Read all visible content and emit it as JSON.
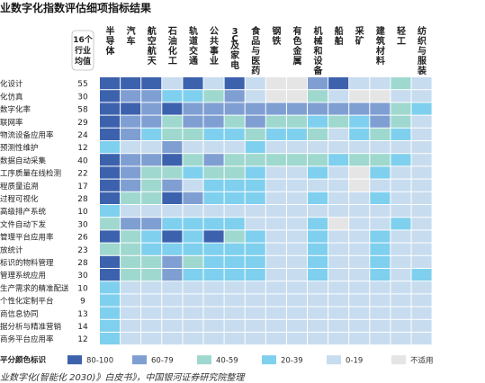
{
  "title": "业数字化指数评估细项指标结果",
  "source": "业数字化(智能化 2030)》白皮书》，中国银河证券研究院整理",
  "chart_data": {
    "type": "heatmap",
    "score_header": [
      "16个",
      "行业",
      "均值"
    ],
    "columns": [
      "半导体",
      "汽车",
      "航空航天",
      "石油化工",
      "轨道交通",
      "公共事业",
      "3C及家电",
      "食品与医药",
      "钢铁",
      "有色金属",
      "机械和设备",
      "船舶",
      "采矿",
      "建筑材料",
      "轻工",
      "纺织与服装"
    ],
    "rows": [
      {
        "label": "化设计",
        "mean": 55
      },
      {
        "label": "化仿真",
        "mean": 30
      },
      {
        "label": "数字化率",
        "mean": 58
      },
      {
        "label": "联网率",
        "mean": 29
      },
      {
        "label": "物流设备应用率",
        "mean": 24
      },
      {
        "label": "预测性维护",
        "mean": 12
      },
      {
        "label": "数据自动采集",
        "mean": 40
      },
      {
        "label": "工序质量在线检测",
        "mean": 22
      },
      {
        "label": "程质量追溯",
        "mean": 17
      },
      {
        "label": "过程可视化",
        "mean": 28
      },
      {
        "label": "高级排产系统",
        "mean": 10
      },
      {
        "label": "文件自动下发",
        "mean": 30
      },
      {
        "label": "管理平台应用率",
        "mean": 26
      },
      {
        "label": "放统计",
        "mean": 23
      },
      {
        "label": "标识的物料管理",
        "mean": 28
      },
      {
        "label": "管理系统应用",
        "mean": 30
      },
      {
        "label": "生产需求的精准配送",
        "mean": 10
      },
      {
        "label": "个性化定制平台",
        "mean": 9
      },
      {
        "label": "商信息协同",
        "mean": 13
      },
      {
        "label": "据分析与精准营销",
        "mean": 14
      },
      {
        "label": "商务平台应用率",
        "mean": 12
      }
    ],
    "levels": [
      "80-100",
      "60-79",
      "40-59",
      "20-39",
      "0-19",
      "不适用"
    ],
    "level_colors": [
      "#3d62ad",
      "#7f9fd3",
      "#9fd8cf",
      "#7fd0ee",
      "#c7dcef",
      "#e5e5e5"
    ],
    "legend_title": "平分颜色标识",
    "cells": [
      [
        0,
        0,
        0,
        4,
        0,
        4,
        0,
        4,
        5,
        5,
        1,
        0,
        4,
        4,
        2,
        4
      ],
      [
        0,
        1,
        1,
        3,
        3,
        2,
        1,
        4,
        5,
        5,
        2,
        4,
        5,
        5,
        4,
        4
      ],
      [
        0,
        0,
        1,
        0,
        1,
        1,
        1,
        1,
        1,
        1,
        1,
        1,
        1,
        1,
        2,
        3
      ],
      [
        0,
        1,
        1,
        2,
        1,
        1,
        2,
        1,
        2,
        2,
        3,
        2,
        3,
        1,
        2,
        4
      ],
      [
        0,
        1,
        3,
        2,
        2,
        3,
        3,
        2,
        3,
        3,
        2,
        4,
        3,
        2,
        3,
        4
      ],
      [
        3,
        4,
        4,
        1,
        4,
        4,
        4,
        3,
        4,
        4,
        4,
        4,
        4,
        4,
        4,
        4
      ],
      [
        0,
        1,
        1,
        0,
        2,
        1,
        2,
        2,
        2,
        2,
        2,
        3,
        2,
        2,
        3,
        4
      ],
      [
        0,
        1,
        2,
        2,
        3,
        2,
        2,
        3,
        4,
        4,
        3,
        4,
        5,
        3,
        4,
        4
      ],
      [
        0,
        1,
        2,
        1,
        4,
        3,
        3,
        3,
        4,
        4,
        4,
        4,
        5,
        4,
        4,
        4
      ],
      [
        0,
        2,
        2,
        0,
        1,
        3,
        3,
        3,
        4,
        4,
        3,
        4,
        4,
        3,
        4,
        4
      ],
      [
        3,
        4,
        4,
        4,
        4,
        4,
        4,
        4,
        4,
        4,
        4,
        4,
        4,
        4,
        4,
        4
      ],
      [
        2,
        1,
        1,
        3,
        3,
        3,
        3,
        4,
        4,
        4,
        3,
        5,
        4,
        4,
        3,
        4
      ],
      [
        0,
        2,
        3,
        0,
        3,
        0,
        2,
        3,
        4,
        4,
        3,
        4,
        4,
        3,
        4,
        4
      ],
      [
        2,
        2,
        3,
        3,
        3,
        3,
        3,
        3,
        4,
        4,
        3,
        4,
        4,
        3,
        4,
        4
      ],
      [
        0,
        2,
        2,
        1,
        2,
        3,
        3,
        3,
        4,
        4,
        3,
        4,
        4,
        3,
        4,
        4
      ],
      [
        0,
        2,
        2,
        1,
        3,
        3,
        3,
        3,
        4,
        4,
        3,
        4,
        4,
        3,
        4,
        3
      ],
      [
        3,
        4,
        4,
        4,
        4,
        4,
        4,
        4,
        4,
        4,
        4,
        4,
        4,
        4,
        4,
        4
      ],
      [
        3,
        4,
        4,
        4,
        4,
        4,
        4,
        4,
        4,
        4,
        4,
        4,
        4,
        4,
        4,
        4
      ],
      [
        3,
        4,
        4,
        4,
        4,
        4,
        4,
        4,
        4,
        4,
        4,
        4,
        4,
        4,
        4,
        4
      ],
      [
        3,
        4,
        4,
        4,
        4,
        4,
        4,
        4,
        4,
        4,
        4,
        4,
        4,
        4,
        4,
        4
      ],
      [
        3,
        4,
        4,
        4,
        4,
        4,
        4,
        4,
        4,
        4,
        4,
        4,
        4,
        4,
        4,
        4
      ]
    ]
  }
}
